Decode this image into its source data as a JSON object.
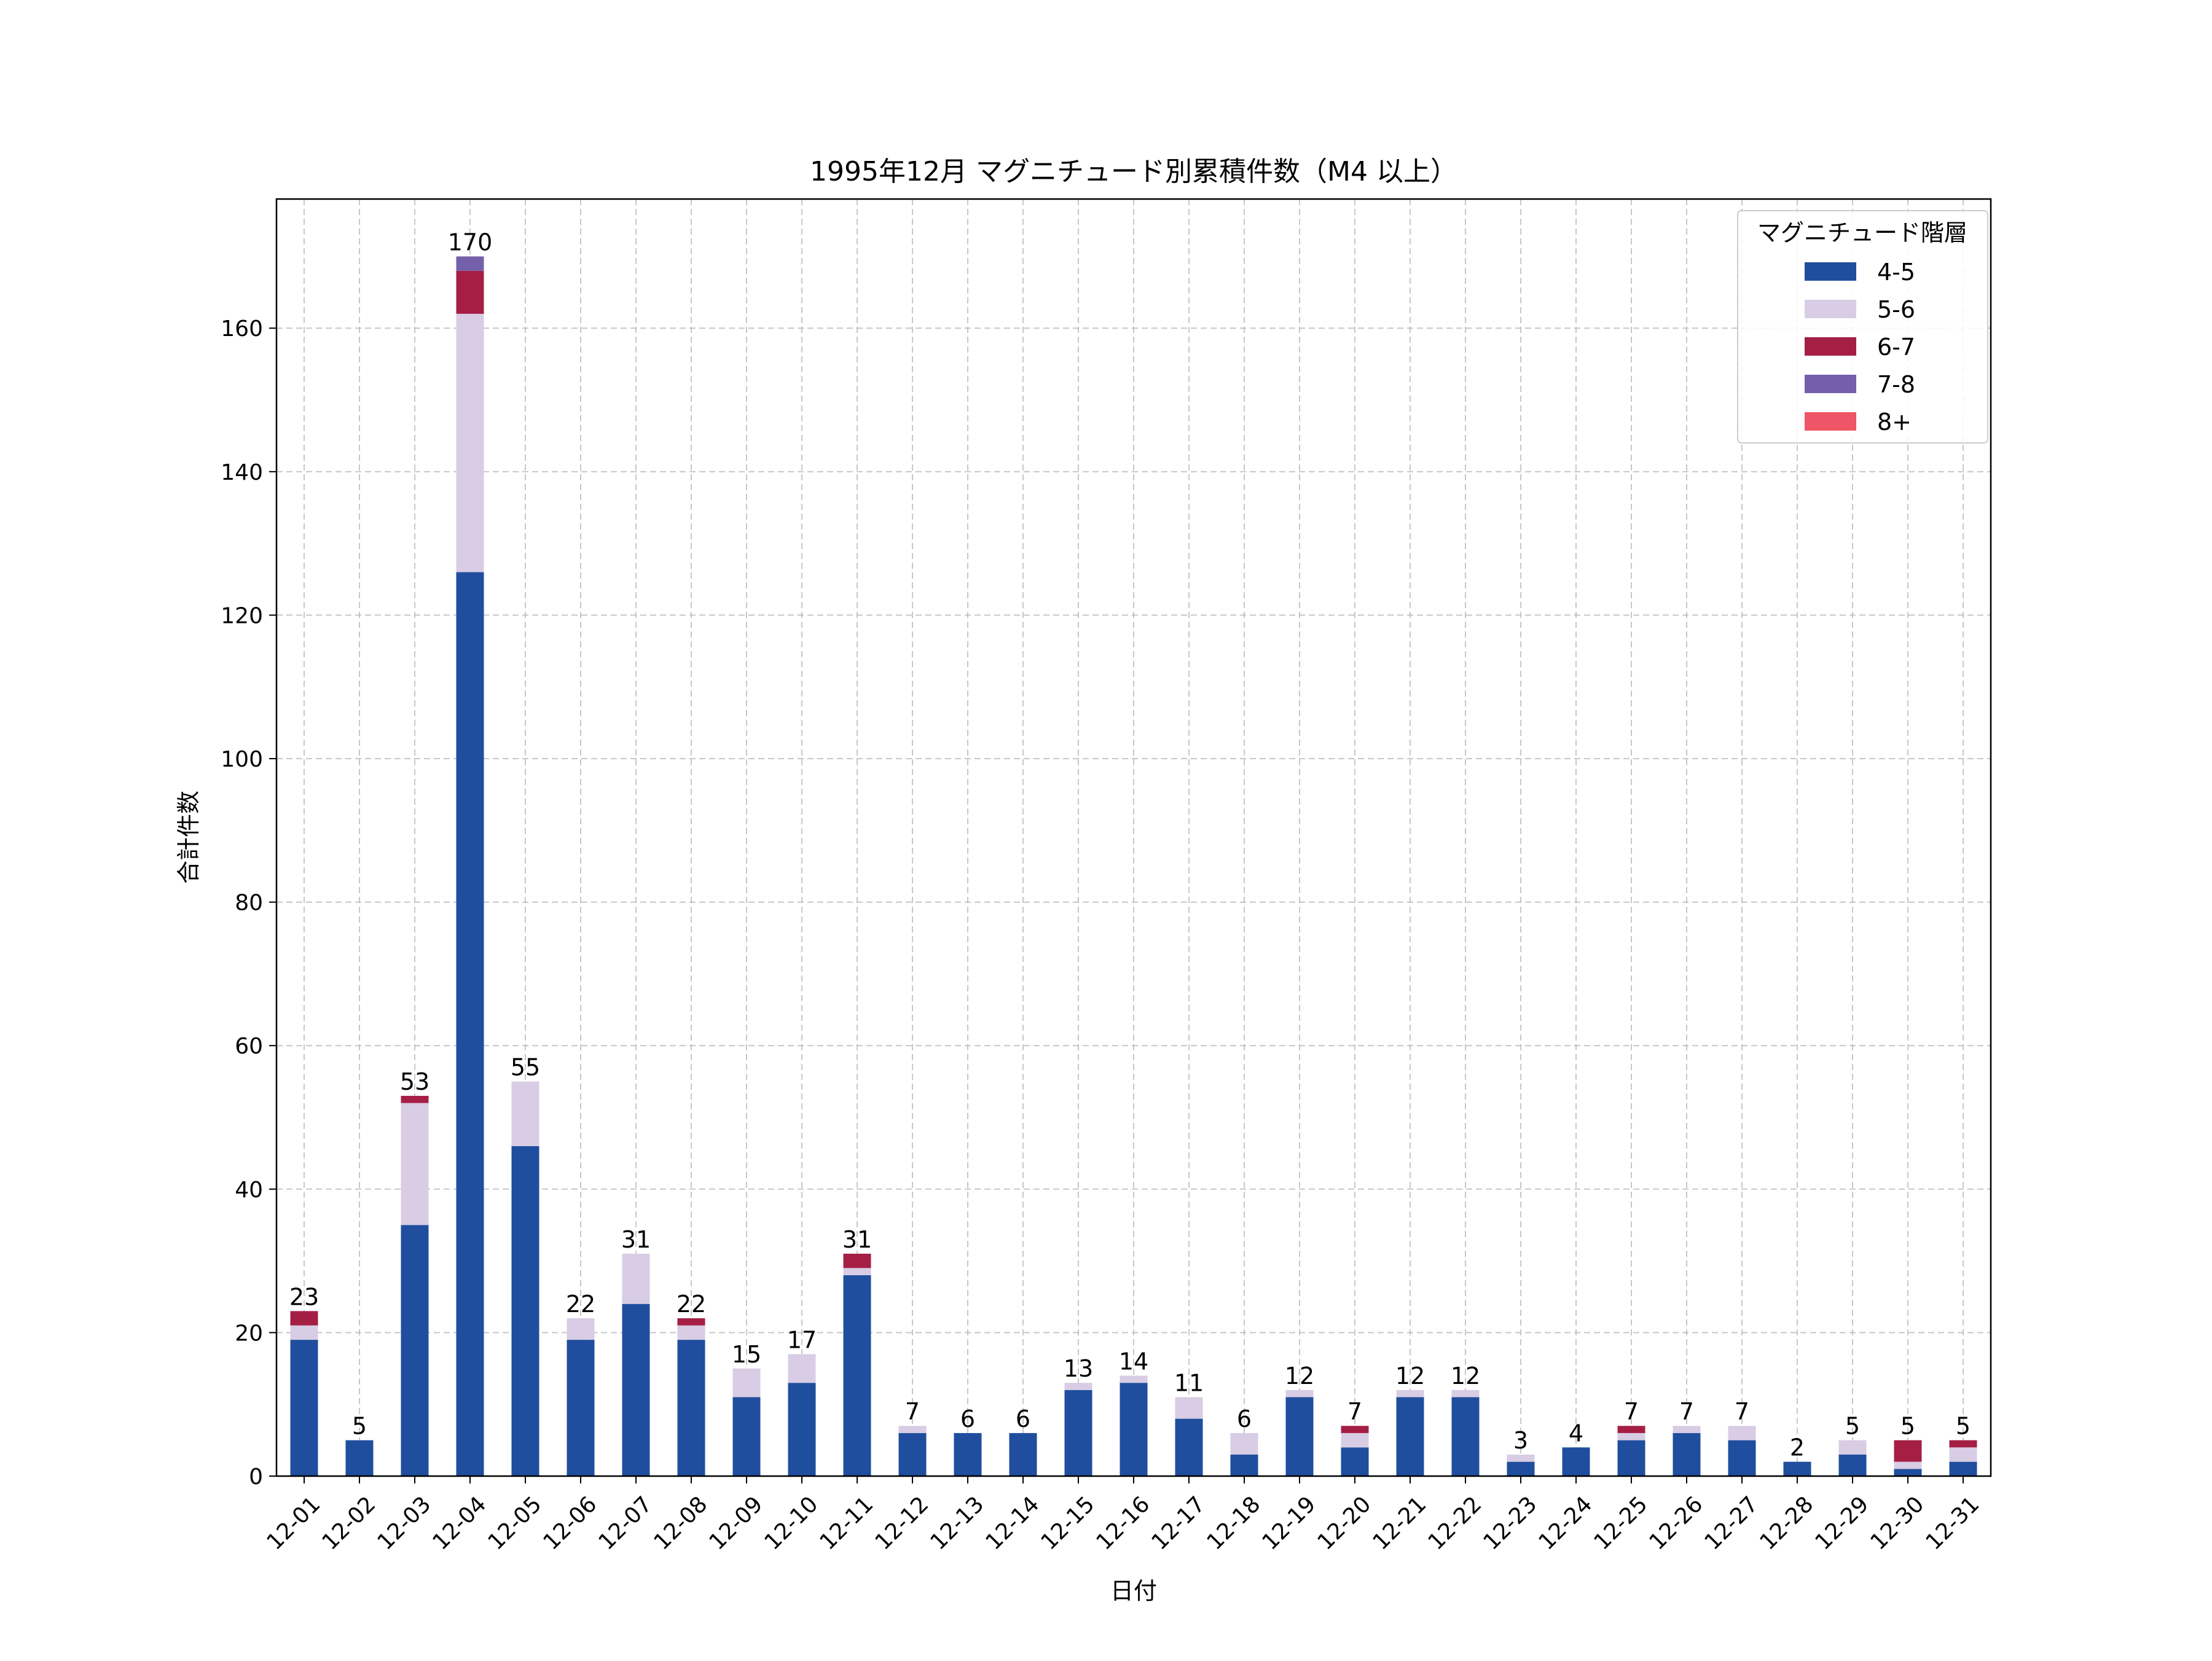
{
  "chart_data": {
    "type": "bar",
    "stacked": true,
    "title": "1995年12月 マグニチュード別累積件数（M4 以上）",
    "xlabel": "日付",
    "ylabel": "合計件数",
    "ylim": [
      0,
      178
    ],
    "yticks": [
      0,
      20,
      40,
      60,
      80,
      100,
      120,
      140,
      160
    ],
    "grid": true,
    "legend": {
      "title": "マグニチュード階層",
      "position": "top-right"
    },
    "categories": [
      "12-01",
      "12-02",
      "12-03",
      "12-04",
      "12-05",
      "12-06",
      "12-07",
      "12-08",
      "12-09",
      "12-10",
      "12-11",
      "12-12",
      "12-13",
      "12-14",
      "12-15",
      "12-16",
      "12-17",
      "12-18",
      "12-19",
      "12-20",
      "12-21",
      "12-22",
      "12-23",
      "12-24",
      "12-25",
      "12-26",
      "12-27",
      "12-28",
      "12-29",
      "12-30",
      "12-31"
    ],
    "series": [
      {
        "name": "4-5",
        "color": "#1f4e9e",
        "values": [
          19,
          5,
          35,
          126,
          46,
          19,
          24,
          19,
          11,
          13,
          28,
          6,
          6,
          6,
          12,
          13,
          8,
          3,
          11,
          4,
          11,
          11,
          2,
          4,
          5,
          6,
          5,
          2,
          3,
          1,
          2
        ]
      },
      {
        "name": "5-6",
        "color": "#d8cde4",
        "values": [
          2,
          0,
          17,
          36,
          9,
          3,
          7,
          2,
          4,
          4,
          1,
          1,
          0,
          0,
          1,
          1,
          3,
          3,
          1,
          2,
          1,
          1,
          1,
          0,
          1,
          1,
          2,
          0,
          2,
          1,
          2
        ]
      },
      {
        "name": "6-7",
        "color": "#a51f45",
        "values": [
          2,
          0,
          1,
          6,
          0,
          0,
          0,
          1,
          0,
          0,
          2,
          0,
          0,
          0,
          0,
          0,
          0,
          0,
          0,
          1,
          0,
          0,
          0,
          0,
          1,
          0,
          0,
          0,
          0,
          3,
          1
        ]
      },
      {
        "name": "7-8",
        "color": "#7460aa",
        "values": [
          0,
          0,
          0,
          2,
          0,
          0,
          0,
          0,
          0,
          0,
          0,
          0,
          0,
          0,
          0,
          0,
          0,
          0,
          0,
          0,
          0,
          0,
          0,
          0,
          0,
          0,
          0,
          0,
          0,
          0,
          0
        ]
      },
      {
        "name": "8+",
        "color": "#ee5566",
        "values": [
          0,
          0,
          0,
          0,
          0,
          0,
          0,
          0,
          0,
          0,
          0,
          0,
          0,
          0,
          0,
          0,
          0,
          0,
          0,
          0,
          0,
          0,
          0,
          0,
          0,
          0,
          0,
          0,
          0,
          0,
          0
        ]
      }
    ],
    "totals": [
      23,
      5,
      53,
      170,
      55,
      22,
      31,
      22,
      15,
      17,
      31,
      7,
      6,
      6,
      13,
      14,
      11,
      6,
      12,
      7,
      12,
      12,
      3,
      4,
      7,
      7,
      7,
      2,
      5,
      5,
      5
    ]
  }
}
